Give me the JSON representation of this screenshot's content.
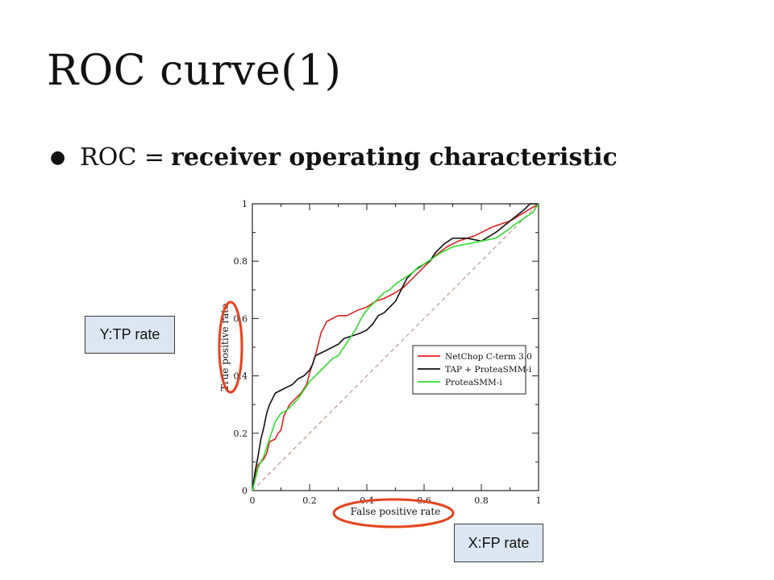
{
  "slide": {
    "title": "ROC curve(1)",
    "bullet_prefix": "ROC = ",
    "bullet_bold": "receiver operating characteristic"
  },
  "callouts": {
    "y": "Y:TP rate",
    "x": "X:FP rate"
  },
  "colors": {
    "highlight_ellipse": "#e8421c",
    "callout_fill": "#dbe6f2",
    "diagonal": "#c49a9a"
  },
  "chart_data": {
    "type": "line",
    "xlabel": "False positive rate",
    "ylabel": "True positive rate",
    "xlim": [
      0,
      1
    ],
    "ylim": [
      0,
      1
    ],
    "x_ticks": [
      "0",
      "0.2",
      "0.4",
      "0.6",
      "0.8",
      "1"
    ],
    "y_ticks": [
      "0",
      "0.2",
      "0.4",
      "0.6",
      "0.8",
      "1"
    ],
    "legend_position": "right-middle",
    "diagonal": true,
    "series": [
      {
        "name": "NetChop C-term 3.0",
        "color": "#e02020",
        "points": [
          [
            0,
            0
          ],
          [
            0.01,
            0.05
          ],
          [
            0.02,
            0.09
          ],
          [
            0.04,
            0.11
          ],
          [
            0.05,
            0.13
          ],
          [
            0.06,
            0.17
          ],
          [
            0.08,
            0.18
          ],
          [
            0.09,
            0.2
          ],
          [
            0.1,
            0.21
          ],
          [
            0.11,
            0.26
          ],
          [
            0.12,
            0.28
          ],
          [
            0.13,
            0.3
          ],
          [
            0.15,
            0.32
          ],
          [
            0.17,
            0.34
          ],
          [
            0.19,
            0.37
          ],
          [
            0.2,
            0.41
          ],
          [
            0.21,
            0.44
          ],
          [
            0.22,
            0.47
          ],
          [
            0.23,
            0.51
          ],
          [
            0.24,
            0.55
          ],
          [
            0.25,
            0.57
          ],
          [
            0.26,
            0.59
          ],
          [
            0.28,
            0.6
          ],
          [
            0.3,
            0.61
          ],
          [
            0.33,
            0.61
          ],
          [
            0.35,
            0.62
          ],
          [
            0.37,
            0.63
          ],
          [
            0.4,
            0.64
          ],
          [
            0.43,
            0.66
          ],
          [
            0.46,
            0.67
          ],
          [
            0.5,
            0.69
          ],
          [
            0.53,
            0.71
          ],
          [
            0.56,
            0.74
          ],
          [
            0.6,
            0.78
          ],
          [
            0.64,
            0.82
          ],
          [
            0.68,
            0.85
          ],
          [
            0.72,
            0.87
          ],
          [
            0.78,
            0.89
          ],
          [
            0.84,
            0.92
          ],
          [
            0.9,
            0.94
          ],
          [
            0.95,
            0.97
          ],
          [
            1,
            1
          ]
        ]
      },
      {
        "name": "TAP + ProteaSMM-i",
        "color": "#111111",
        "points": [
          [
            0,
            0
          ],
          [
            0.01,
            0.07
          ],
          [
            0.02,
            0.12
          ],
          [
            0.03,
            0.18
          ],
          [
            0.04,
            0.22
          ],
          [
            0.05,
            0.27
          ],
          [
            0.06,
            0.3
          ],
          [
            0.07,
            0.32
          ],
          [
            0.08,
            0.34
          ],
          [
            0.1,
            0.35
          ],
          [
            0.12,
            0.36
          ],
          [
            0.14,
            0.37
          ],
          [
            0.16,
            0.39
          ],
          [
            0.18,
            0.4
          ],
          [
            0.2,
            0.42
          ],
          [
            0.21,
            0.44
          ],
          [
            0.22,
            0.47
          ],
          [
            0.24,
            0.48
          ],
          [
            0.26,
            0.49
          ],
          [
            0.28,
            0.5
          ],
          [
            0.3,
            0.51
          ],
          [
            0.32,
            0.53
          ],
          [
            0.35,
            0.54
          ],
          [
            0.38,
            0.55
          ],
          [
            0.4,
            0.56
          ],
          [
            0.42,
            0.58
          ],
          [
            0.44,
            0.61
          ],
          [
            0.46,
            0.62
          ],
          [
            0.48,
            0.64
          ],
          [
            0.5,
            0.66
          ],
          [
            0.52,
            0.7
          ],
          [
            0.54,
            0.74
          ],
          [
            0.57,
            0.77
          ],
          [
            0.6,
            0.79
          ],
          [
            0.62,
            0.8
          ],
          [
            0.64,
            0.83
          ],
          [
            0.67,
            0.86
          ],
          [
            0.7,
            0.88
          ],
          [
            0.75,
            0.88
          ],
          [
            0.8,
            0.87
          ],
          [
            0.85,
            0.9
          ],
          [
            0.9,
            0.94
          ],
          [
            0.95,
            0.98
          ],
          [
            0.97,
            1
          ],
          [
            1,
            1
          ]
        ]
      },
      {
        "name": "ProteaSMM-i",
        "color": "#2ee02e",
        "points": [
          [
            0,
            0
          ],
          [
            0.01,
            0.04
          ],
          [
            0.02,
            0.08
          ],
          [
            0.04,
            0.12
          ],
          [
            0.06,
            0.18
          ],
          [
            0.08,
            0.24
          ],
          [
            0.1,
            0.27
          ],
          [
            0.12,
            0.28
          ],
          [
            0.14,
            0.3
          ],
          [
            0.16,
            0.32
          ],
          [
            0.18,
            0.35
          ],
          [
            0.2,
            0.38
          ],
          [
            0.22,
            0.4
          ],
          [
            0.24,
            0.42
          ],
          [
            0.26,
            0.44
          ],
          [
            0.28,
            0.46
          ],
          [
            0.3,
            0.47
          ],
          [
            0.32,
            0.5
          ],
          [
            0.34,
            0.53
          ],
          [
            0.36,
            0.56
          ],
          [
            0.38,
            0.6
          ],
          [
            0.4,
            0.63
          ],
          [
            0.42,
            0.65
          ],
          [
            0.44,
            0.67
          ],
          [
            0.46,
            0.69
          ],
          [
            0.48,
            0.7
          ],
          [
            0.5,
            0.72
          ],
          [
            0.53,
            0.74
          ],
          [
            0.56,
            0.76
          ],
          [
            0.58,
            0.78
          ],
          [
            0.6,
            0.79
          ],
          [
            0.63,
            0.81
          ],
          [
            0.66,
            0.83
          ],
          [
            0.7,
            0.85
          ],
          [
            0.75,
            0.86
          ],
          [
            0.8,
            0.87
          ],
          [
            0.85,
            0.88
          ],
          [
            0.88,
            0.9
          ],
          [
            0.92,
            0.93
          ],
          [
            0.95,
            0.95
          ],
          [
            0.98,
            0.97
          ],
          [
            1,
            1
          ]
        ]
      }
    ]
  }
}
